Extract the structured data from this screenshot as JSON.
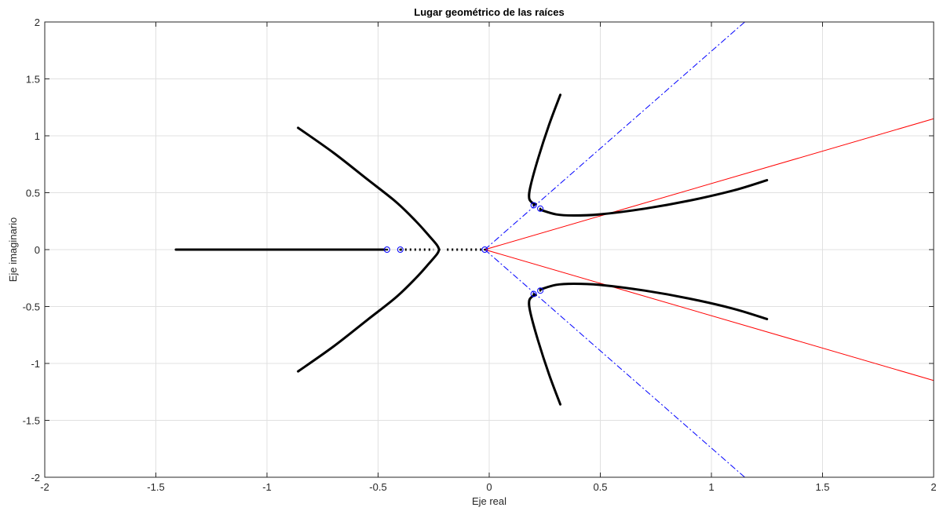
{
  "chart_data": {
    "type": "line",
    "title": "Lugar geométrico de las raíces",
    "xlabel": "Eje real",
    "ylabel": "Eje imaginario",
    "xlim": [
      -2,
      2
    ],
    "ylim": [
      -2,
      2
    ],
    "xticks": [
      -2,
      -1.5,
      -1,
      -0.5,
      0,
      0.5,
      1,
      1.5,
      2
    ],
    "yticks": [
      -2,
      -1.5,
      -1,
      -0.5,
      0,
      0.5,
      1,
      1.5,
      2
    ],
    "xtick_labels": [
      "-2",
      "-1.5",
      "-1",
      "-0.5",
      "0",
      "0.5",
      "1",
      "1.5",
      "2"
    ],
    "ytick_labels": [
      "-2",
      "-1.5",
      "-1",
      "-0.5",
      "0",
      "0.5",
      "1",
      "1.5",
      "2"
    ],
    "grid": true,
    "colors": {
      "locus": "#000000",
      "asymptote": "#ff0000",
      "zeta_line": "#0000ff",
      "pole_marker": "#0000ff"
    },
    "branches": [
      {
        "x": [
          -1.41,
          -0.47
        ],
        "y": [
          0,
          0
        ]
      },
      {
        "x": [
          -0.86,
          -0.7,
          -0.55,
          -0.42,
          -0.33,
          -0.27,
          -0.235,
          -0.225
        ],
        "y": [
          1.07,
          0.85,
          0.62,
          0.42,
          0.25,
          0.12,
          0.04,
          0.0
        ]
      },
      {
        "x": [
          -0.86,
          -0.7,
          -0.55,
          -0.42,
          -0.33,
          -0.27,
          -0.235,
          -0.225
        ],
        "y": [
          -1.07,
          -0.85,
          -0.62,
          -0.42,
          -0.25,
          -0.12,
          -0.04,
          0.0
        ]
      },
      {
        "x": [
          0.32,
          0.27,
          0.22,
          0.185,
          0.18,
          0.195,
          0.21
        ],
        "y": [
          1.36,
          1.1,
          0.8,
          0.55,
          0.45,
          0.41,
          0.4
        ]
      },
      {
        "x": [
          0.32,
          0.27,
          0.22,
          0.185,
          0.18,
          0.195,
          0.21
        ],
        "y": [
          -1.36,
          -1.1,
          -0.8,
          -0.55,
          -0.45,
          -0.41,
          -0.4
        ]
      },
      {
        "x": [
          0.23,
          0.3,
          0.38,
          0.5,
          0.7,
          0.9,
          1.1,
          1.25
        ],
        "y": [
          0.35,
          0.31,
          0.3,
          0.31,
          0.36,
          0.43,
          0.52,
          0.61
        ]
      },
      {
        "x": [
          0.23,
          0.3,
          0.38,
          0.5,
          0.7,
          0.9,
          1.1,
          1.25
        ],
        "y": [
          -0.35,
          -0.31,
          -0.3,
          -0.31,
          -0.36,
          -0.43,
          -0.52,
          -0.61
        ]
      }
    ],
    "dotted_segments": [
      {
        "x": [
          -0.4,
          -0.25
        ]
      },
      {
        "x": [
          -0.19,
          -0.03
        ]
      }
    ],
    "asymptotes": [
      {
        "x": [
          -0.02,
          2.0
        ],
        "y": [
          0,
          1.15
        ]
      },
      {
        "x": [
          -0.02,
          2.0
        ],
        "y": [
          0,
          -1.15
        ]
      }
    ],
    "zeta_lines": [
      {
        "x": [
          -0.02,
          1.15
        ],
        "y": [
          0,
          2.0
        ]
      },
      {
        "x": [
          -0.02,
          1.15
        ],
        "y": [
          0,
          -2.0
        ]
      }
    ],
    "markers": [
      {
        "x": -0.46,
        "y": 0,
        "symbol": "o"
      },
      {
        "x": -0.4,
        "y": 0,
        "symbol": "o"
      },
      {
        "x": -0.02,
        "y": 0,
        "symbol": "o"
      },
      {
        "x": 0.2,
        "y": 0.39,
        "symbol": "o"
      },
      {
        "x": 0.23,
        "y": 0.36,
        "symbol": "o"
      },
      {
        "x": 0.2,
        "y": -0.39,
        "symbol": "o"
      },
      {
        "x": 0.23,
        "y": -0.36,
        "symbol": "o"
      }
    ]
  }
}
